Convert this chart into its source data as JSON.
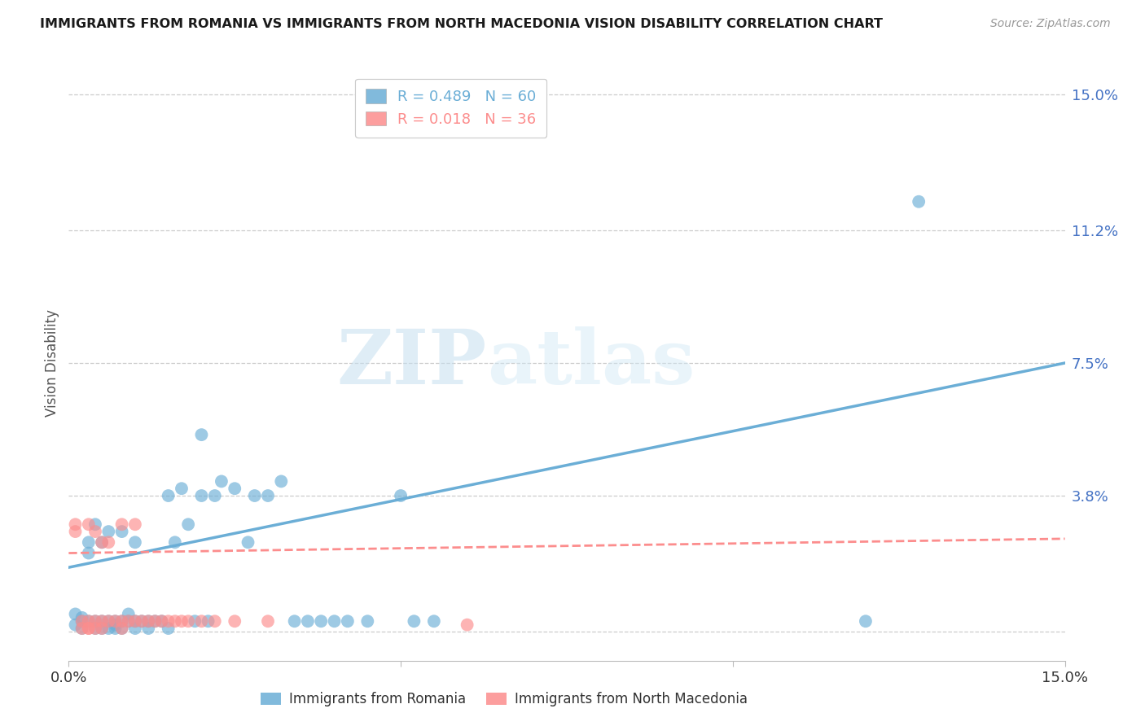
{
  "title": "IMMIGRANTS FROM ROMANIA VS IMMIGRANTS FROM NORTH MACEDONIA VISION DISABILITY CORRELATION CHART",
  "source": "Source: ZipAtlas.com",
  "ylabel": "Vision Disability",
  "yticks": [
    0.0,
    0.038,
    0.075,
    0.112,
    0.15
  ],
  "ytick_labels": [
    "",
    "3.8%",
    "7.5%",
    "11.2%",
    "15.0%"
  ],
  "xlim": [
    0.0,
    0.15
  ],
  "ylim": [
    -0.008,
    0.158
  ],
  "romania_R": 0.489,
  "romania_N": 60,
  "macedonia_R": 0.018,
  "macedonia_N": 36,
  "romania_color": "#6baed6",
  "macedonia_color": "#fc8d8d",
  "legend_label_romania": "Immigrants from Romania",
  "legend_label_macedonia": "Immigrants from North Macedonia",
  "watermark_1": "ZIP",
  "watermark_2": "atlas",
  "romania_line_x": [
    0.0,
    0.15
  ],
  "romania_line_y": [
    0.018,
    0.075
  ],
  "macedonia_line_x": [
    0.0,
    0.15
  ],
  "macedonia_line_y": [
    0.022,
    0.026
  ],
  "romania_x": [
    0.001,
    0.001,
    0.002,
    0.002,
    0.002,
    0.003,
    0.003,
    0.003,
    0.004,
    0.004,
    0.004,
    0.005,
    0.005,
    0.006,
    0.006,
    0.007,
    0.007,
    0.008,
    0.008,
    0.009,
    0.009,
    0.01,
    0.01,
    0.011,
    0.012,
    0.013,
    0.014,
    0.015,
    0.016,
    0.017,
    0.018,
    0.019,
    0.02,
    0.021,
    0.022,
    0.023,
    0.025,
    0.027,
    0.028,
    0.03,
    0.032,
    0.034,
    0.036,
    0.038,
    0.04,
    0.042,
    0.045,
    0.05,
    0.052,
    0.055,
    0.005,
    0.006,
    0.007,
    0.008,
    0.01,
    0.012,
    0.015,
    0.02,
    0.12,
    0.128
  ],
  "romania_y": [
    0.005,
    0.002,
    0.003,
    0.004,
    0.001,
    0.025,
    0.022,
    0.003,
    0.03,
    0.003,
    0.001,
    0.025,
    0.003,
    0.028,
    0.003,
    0.003,
    0.002,
    0.028,
    0.003,
    0.005,
    0.003,
    0.025,
    0.003,
    0.003,
    0.003,
    0.003,
    0.003,
    0.038,
    0.025,
    0.04,
    0.03,
    0.003,
    0.038,
    0.003,
    0.038,
    0.042,
    0.04,
    0.025,
    0.038,
    0.038,
    0.042,
    0.003,
    0.003,
    0.003,
    0.003,
    0.003,
    0.003,
    0.038,
    0.003,
    0.003,
    0.001,
    0.001,
    0.001,
    0.001,
    0.001,
    0.001,
    0.001,
    0.055,
    0.003,
    0.12
  ],
  "macedonia_x": [
    0.001,
    0.001,
    0.002,
    0.002,
    0.003,
    0.003,
    0.004,
    0.004,
    0.005,
    0.005,
    0.006,
    0.006,
    0.007,
    0.008,
    0.008,
    0.009,
    0.01,
    0.01,
    0.011,
    0.012,
    0.013,
    0.014,
    0.015,
    0.016,
    0.017,
    0.018,
    0.02,
    0.022,
    0.025,
    0.03,
    0.003,
    0.005,
    0.008,
    0.06,
    0.003,
    0.004
  ],
  "macedonia_y": [
    0.028,
    0.03,
    0.003,
    0.001,
    0.03,
    0.003,
    0.028,
    0.003,
    0.025,
    0.003,
    0.025,
    0.003,
    0.003,
    0.03,
    0.003,
    0.003,
    0.03,
    0.003,
    0.003,
    0.003,
    0.003,
    0.003,
    0.003,
    0.003,
    0.003,
    0.003,
    0.003,
    0.003,
    0.003,
    0.003,
    0.001,
    0.001,
    0.001,
    0.002,
    0.001,
    0.001
  ]
}
